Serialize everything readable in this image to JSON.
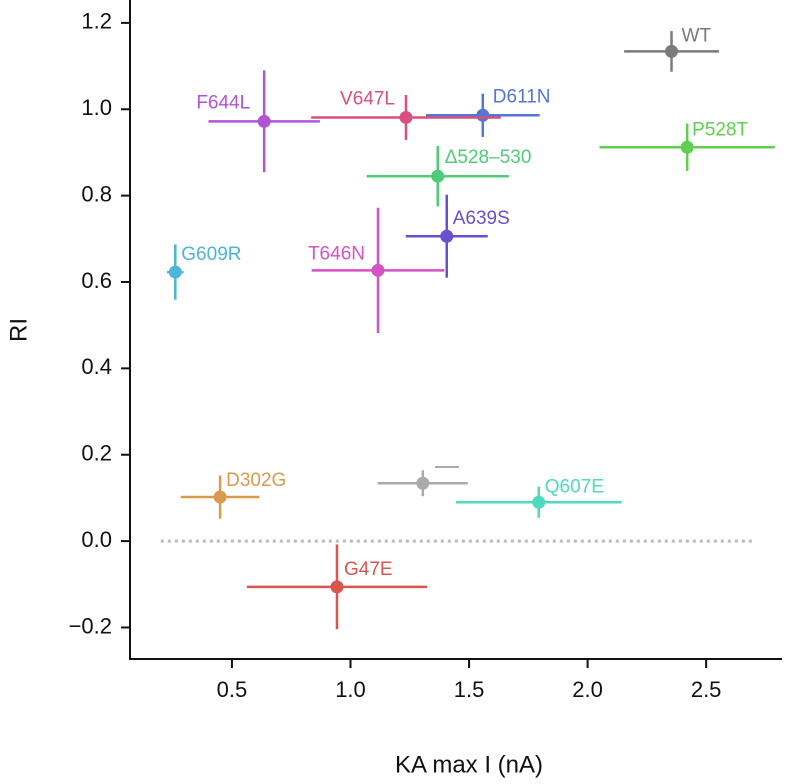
{
  "chart_data": {
    "type": "scatter",
    "x_label": "KA max I (nA)",
    "y_label": "RI",
    "xlim": [
      0.07,
      2.82
    ],
    "ylim": [
      -0.273,
      1.253
    ],
    "xticks": [
      0.5,
      {
        "value": 1.0,
        "label": "1.0"
      },
      1.5,
      {
        "value": 2.0,
        "label": "2.0"
      },
      2.5
    ],
    "yticks": [
      {
        "value": -0.2,
        "label": "−0.2"
      },
      {
        "value": 0.0,
        "label": "0.0"
      },
      0.2,
      0.4,
      0.6,
      0.8,
      {
        "value": 1.0,
        "label": "1.0"
      },
      1.2
    ],
    "reference_line": {
      "y": 0,
      "x": [
        0.2,
        2.7
      ],
      "color": "#bbbbbb"
    },
    "points": [
      {
        "name": "WT",
        "color": "#7a7a7a",
        "x": 2.354,
        "y": 1.134,
        "xerr": 0.2,
        "yerr": 0.047
      },
      {
        "name": "P528T",
        "color": "#5ecf4f",
        "x": 2.42,
        "y": 0.912,
        "xerr": 0.37,
        "yerr": 0.055
      },
      {
        "name": "D611N",
        "color": "#5576d1",
        "x": 1.558,
        "y": 0.986,
        "xerr": 0.24,
        "yerr": 0.05
      },
      {
        "name": "V647L",
        "color": "#d9507e",
        "x": 1.234,
        "y": 0.981,
        "xerr": 0.4,
        "yerr": 0.052
      },
      {
        "name": "F644L",
        "color": "#b155d6",
        "x": 0.636,
        "y": 0.972,
        "xerr": 0.235,
        "yerr": 0.118
      },
      {
        "name": "Δ528–530",
        "color": "#4fcc7a",
        "x": 1.368,
        "y": 0.845,
        "xerr": 0.3,
        "yerr": 0.07
      },
      {
        "name": "A639S",
        "color": "#6a4fcf",
        "x": 1.406,
        "y": 0.706,
        "xerr": 0.173,
        "yerr": 0.096
      },
      {
        "name": "T646N",
        "color": "#d452c5",
        "x": 1.116,
        "y": 0.627,
        "xerr": 0.28,
        "yerr": 0.145
      },
      {
        "name": "G609R",
        "color": "#4cb5d8",
        "x": 0.261,
        "y": 0.623,
        "xerr": 0.035,
        "yerr": 0.064
      },
      {
        "name": "D302G",
        "color": "#d99a4e",
        "x": 0.45,
        "y": 0.102,
        "xerr": 0.166,
        "yerr": 0.05
      },
      {
        "color": "#aaaaaa",
        "x": 1.305,
        "y": 0.134,
        "xerr": 0.19,
        "yerr": 0.03
      },
      {
        "name": "Q607E",
        "color": "#4fd9bf",
        "x": 1.794,
        "y": 0.09,
        "xerr": 0.35,
        "yerr": 0.036
      },
      {
        "name": "G47E",
        "color": "#d9564e",
        "x": 0.943,
        "y": -0.106,
        "xerr": 0.38,
        "yerr": 0.098
      }
    ]
  }
}
